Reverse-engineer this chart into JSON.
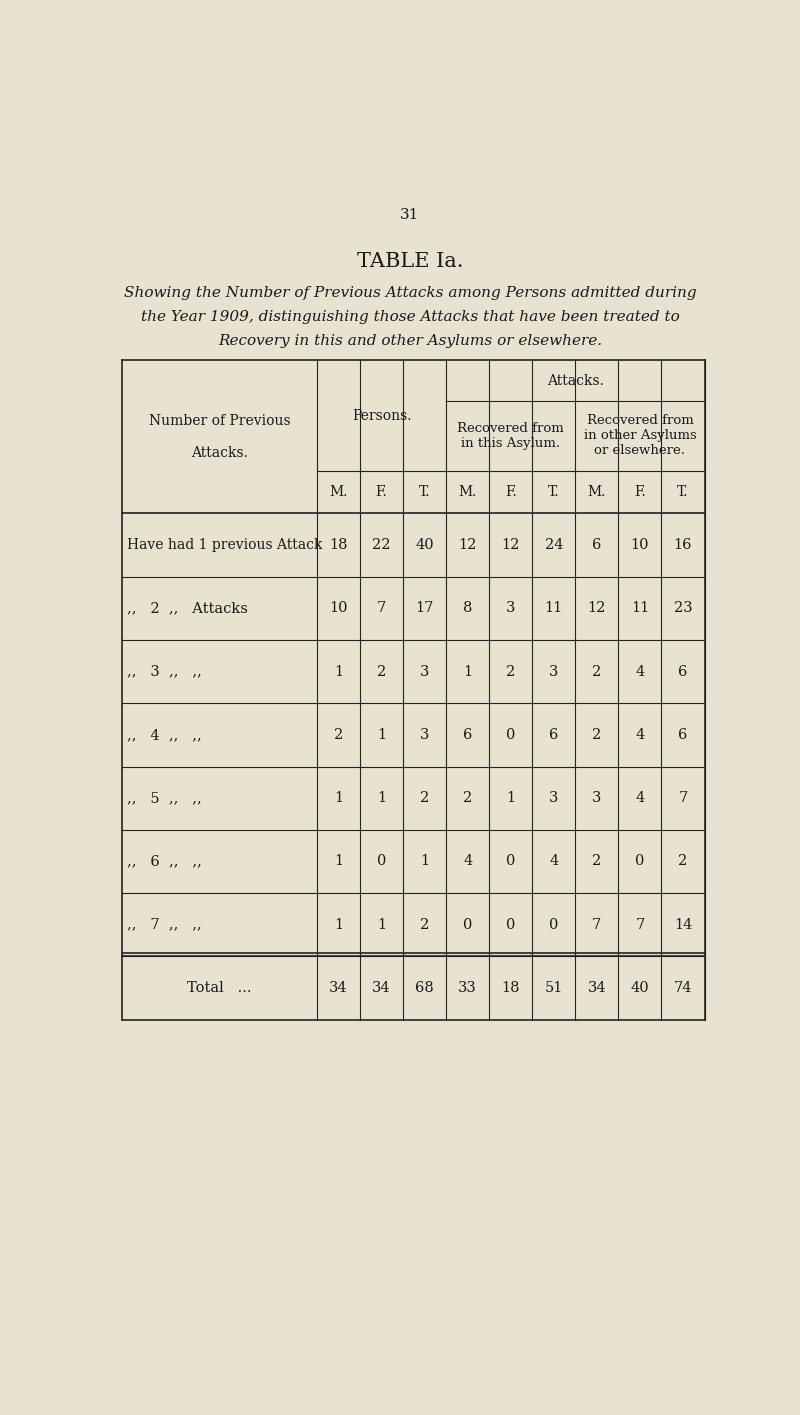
{
  "page_number": "31",
  "title": "TABLE Ia.",
  "subtitle_line1": "Showing the Number of Previous Attacks among Persons admitted during",
  "subtitle_line2": "the Year 1909, distinguishing those Attacks that have been treated to",
  "subtitle_line3": "Recovery in this and other Asylums or elsewhere.",
  "bg_color": "#e8e2d0",
  "col_headers": [
    "M.",
    "F.",
    "T.",
    "M.",
    "F.",
    "T.",
    "M.",
    "F.",
    "T."
  ],
  "row_labels": [
    "Have had 1 previous Attack",
    ",,   2  ,,   Attacks",
    ",,   3  ,,   ,,",
    ",,   4  ,,   ,,",
    ",,   5  ,,   ,,",
    ",,   6  ,,   ,,",
    ",,   7  ,,   ,,",
    "Total   ..."
  ],
  "data": [
    [
      18,
      22,
      40,
      12,
      12,
      24,
      6,
      10,
      16
    ],
    [
      10,
      7,
      17,
      8,
      3,
      11,
      12,
      11,
      23
    ],
    [
      1,
      2,
      3,
      1,
      2,
      3,
      2,
      4,
      6
    ],
    [
      2,
      1,
      3,
      6,
      0,
      6,
      2,
      4,
      6
    ],
    [
      1,
      1,
      2,
      2,
      1,
      3,
      3,
      4,
      7
    ],
    [
      1,
      0,
      1,
      4,
      0,
      4,
      2,
      0,
      2
    ],
    [
      1,
      1,
      2,
      0,
      0,
      0,
      7,
      7,
      14
    ],
    [
      34,
      34,
      68,
      33,
      18,
      51,
      34,
      40,
      74
    ]
  ],
  "text_color": "#1a1a1a",
  "line_color": "#222222",
  "font_size_title": 15,
  "font_size_subtitle": 11,
  "font_size_table": 10.5,
  "font_size_header": 10,
  "font_size_page": 11
}
